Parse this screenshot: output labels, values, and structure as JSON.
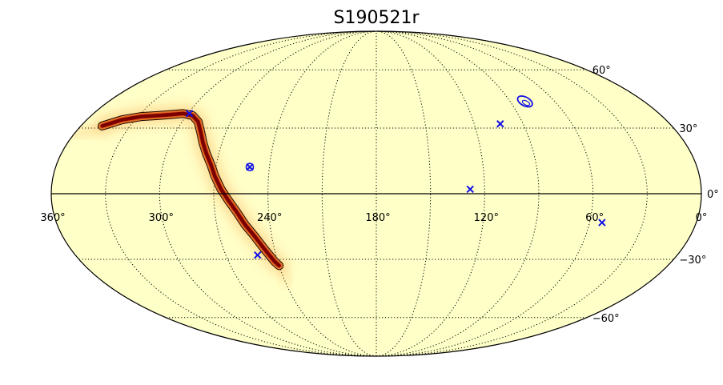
{
  "chart_data": {
    "type": "heatmap",
    "projection": "mollweide",
    "title": "S190521r",
    "background_color": "#ffffc8",
    "grid": true,
    "colormap": "hot_r (dark red = high probability)",
    "x_tick_labels": [
      "360°",
      "300°",
      "240°",
      "180°",
      "120°",
      "60°",
      "0°"
    ],
    "x_tick_values": [
      360,
      300,
      240,
      180,
      120,
      60,
      0
    ],
    "y_tick_labels": [
      "60°",
      "30°",
      "0°",
      "−30°",
      "−60°"
    ],
    "y_tick_values": [
      60,
      30,
      0,
      -30,
      -60
    ],
    "probability_band": {
      "description": "90% credible region of gravitational-wave localization",
      "ridge_ra": [
        347,
        338,
        328,
        318,
        310,
        303,
        296,
        290,
        285,
        281,
        277,
        273,
        270,
        266,
        262,
        258,
        254,
        250,
        246,
        242,
        240
      ],
      "ridge_dec": [
        31,
        34,
        35.5,
        36,
        36.5,
        37,
        36,
        33,
        28,
        23,
        18,
        13,
        8,
        2,
        -3,
        -8,
        -14,
        -19,
        -25,
        -31,
        -33
      ]
    },
    "markers": [
      {
        "ra": 299,
        "dec": 37,
        "symbol": "x"
      },
      {
        "ra": 251,
        "dec": 12,
        "symbol": "x-ring"
      },
      {
        "ra": 251,
        "dec": -28,
        "symbol": "x"
      },
      {
        "ra": 128,
        "dec": 2,
        "symbol": "x"
      },
      {
        "ra": 104,
        "dec": 32,
        "symbol": "x"
      },
      {
        "ra": 80,
        "dec": 43,
        "symbol": "ellipse"
      },
      {
        "ra": 53,
        "dec": -13,
        "symbol": "x"
      }
    ],
    "colors": {
      "marker": "#1010e8",
      "band_outline": "#000000",
      "band_core": "#7a0000",
      "band_mid": "#d23a0a",
      "band_edge": "#f8a040"
    }
  }
}
